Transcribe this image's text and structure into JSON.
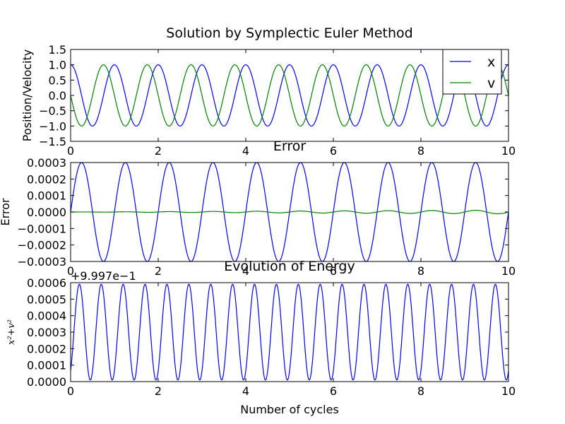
{
  "chart_data": [
    {
      "type": "line",
      "title": "Solution by Symplectic Euler Method",
      "xlabel": "",
      "ylabel": "Position/Velocity",
      "xlim": [
        0,
        10
      ],
      "ylim": [
        -1.5,
        1.5
      ],
      "xticks": [
        "0",
        "2",
        "4",
        "6",
        "8",
        "10"
      ],
      "yticks": [
        "1.5",
        "1.0",
        "0.5",
        "0.0",
        "−0.5",
        "−1.0",
        "−1.5"
      ],
      "legend": {
        "position": "top-right",
        "entries": [
          "x",
          "v"
        ]
      },
      "series": [
        {
          "name": "x",
          "color": "#0000ff",
          "function": "cos(2*pi*t/1.0)",
          "period": 1.0,
          "amplitude": 1.0,
          "x_range": [
            0,
            10
          ]
        },
        {
          "name": "v",
          "color": "#008000",
          "function": "-sin(2*pi*t/1.0)",
          "period": 1.0,
          "amplitude": 1.0,
          "x_range": [
            0,
            10
          ]
        }
      ]
    },
    {
      "type": "line",
      "title": "Error",
      "xlabel": "",
      "ylabel": "Error",
      "xlim": [
        0,
        10
      ],
      "ylim": [
        -0.0003,
        0.0003
      ],
      "xticks": [
        "0",
        "2",
        "4",
        "6",
        "8",
        "10"
      ],
      "yticks": [
        "0.0003",
        "0.0002",
        "0.0001",
        "0.0000",
        "−0.0001",
        "−0.0002",
        "−0.0003"
      ],
      "series": [
        {
          "color": "#0000ff",
          "function": "A*sin(2*pi*t/P)",
          "amplitude": 0.0003,
          "period": 1.0,
          "x_range": [
            0,
            10
          ]
        },
        {
          "color": "#008000",
          "function": "a*t*sin(2*pi*t/P)",
          "amplitude_growth_per_cycle": 1.1e-06,
          "period": 1.0,
          "x_range": [
            0,
            10
          ]
        }
      ]
    },
    {
      "type": "line",
      "title": "Evolution of Energy",
      "xlabel": "Number of cycles",
      "ylabel": "x²+v²",
      "offset_text": "+9.997e−1",
      "xlim": [
        0,
        10
      ],
      "ylim": [
        0,
        0.0006
      ],
      "xticks": [
        "0",
        "2",
        "4",
        "6",
        "8",
        "10"
      ],
      "yticks": [
        "0.0006",
        "0.0005",
        "0.0004",
        "0.0003",
        "0.0002",
        "0.0001",
        "0.0000"
      ],
      "series": [
        {
          "color": "#0000ff",
          "function": "0.0003 + 0.0003*sin(4*pi*t - pi/2 ...)",
          "mean": 0.0003,
          "amplitude": 0.00029,
          "period": 0.5,
          "x_range": [
            0,
            10
          ]
        }
      ]
    }
  ]
}
